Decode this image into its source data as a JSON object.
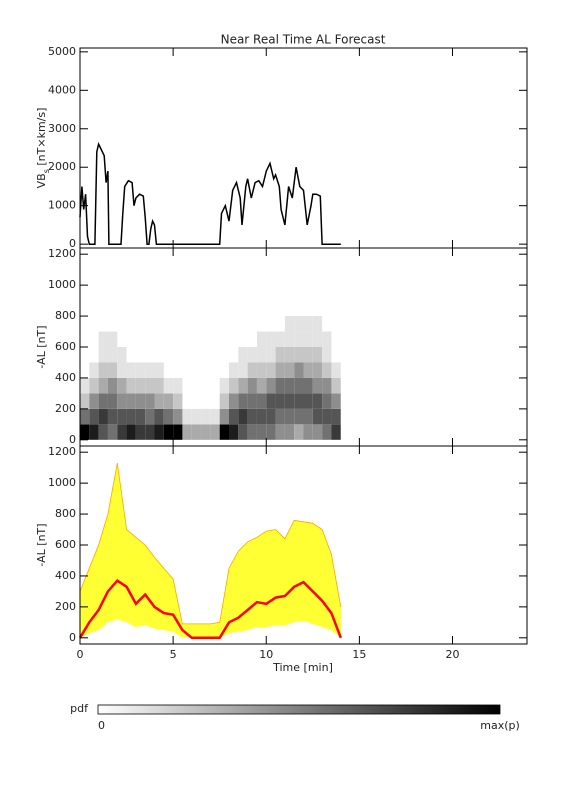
{
  "chart_data": [
    {
      "type": "line",
      "title": "Near Real Time AL Forecast",
      "ylabel": "VB",
      "ylabel_sub": "s",
      "ylabel_unit": " [nT×km/s]",
      "x": [
        0,
        0.1,
        0.2,
        0.3,
        0.4,
        0.5,
        0.8,
        0.9,
        1.0,
        1.1,
        1.3,
        1.4,
        1.5,
        1.55,
        2.2,
        2.3,
        2.4,
        2.6,
        2.8,
        2.9,
        3.0,
        3.2,
        3.4,
        3.5,
        3.6,
        3.7,
        3.8,
        3.9,
        4.0,
        4.1,
        7.5,
        7.6,
        7.8,
        8.0,
        8.2,
        8.4,
        8.6,
        8.7,
        8.9,
        9.0,
        9.2,
        9.4,
        9.6,
        9.8,
        10.0,
        10.2,
        10.4,
        10.5,
        10.7,
        10.8,
        11.0,
        11.2,
        11.4,
        11.6,
        11.8,
        12.0,
        12.2,
        12.4,
        12.5,
        12.7,
        12.9,
        13.0,
        14.0
      ],
      "values": [
        700,
        1500,
        900,
        1300,
        200,
        0,
        0,
        2400,
        2600,
        2500,
        2300,
        1600,
        1900,
        0,
        0,
        800,
        1500,
        1650,
        1600,
        1000,
        1200,
        1300,
        1250,
        700,
        0,
        0,
        400,
        600,
        500,
        0,
        0,
        800,
        1000,
        600,
        1400,
        1600,
        1200,
        500,
        1500,
        1700,
        1200,
        1600,
        1650,
        1500,
        1900,
        2100,
        1700,
        1800,
        1500,
        900,
        500,
        1500,
        1200,
        2000,
        1500,
        1400,
        500,
        1000,
        1300,
        1300,
        1250,
        0,
        0
      ],
      "color": "#000000",
      "xlim": [
        0,
        24
      ],
      "ylim": [
        -100,
        5100
      ],
      "yticks": [
        0,
        1000,
        2000,
        3000,
        4000,
        5000
      ]
    },
    {
      "type": "heatmap",
      "ylabel": "-AL [nT]",
      "x": [
        0,
        0.5,
        1,
        1.5,
        2,
        2.5,
        3,
        3.5,
        4,
        4.5,
        5,
        5.5,
        6,
        6.5,
        7,
        7.5,
        8,
        8.5,
        9,
        9.5,
        10,
        10.5,
        11,
        11.5,
        12,
        12.5,
        13,
        13.5,
        14
      ],
      "y": [
        0,
        100,
        200,
        300,
        400,
        500,
        600,
        700,
        800
      ],
      "values": [
        [
          9,
          5,
          2,
          1,
          0,
          0,
          0,
          0
        ],
        [
          8,
          6,
          4,
          2,
          1,
          0,
          0,
          0
        ],
        [
          6,
          7,
          5,
          3,
          2,
          1,
          1,
          0
        ],
        [
          5,
          6,
          5,
          4,
          2,
          1,
          1,
          0
        ],
        [
          7,
          6,
          4,
          3,
          1,
          1,
          0,
          0
        ],
        [
          8,
          6,
          4,
          2,
          1,
          0,
          0,
          0
        ],
        [
          7,
          6,
          4,
          2,
          1,
          0,
          0,
          0
        ],
        [
          7,
          5,
          4,
          2,
          1,
          0,
          0,
          0
        ],
        [
          8,
          6,
          3,
          2,
          1,
          0,
          0,
          0
        ],
        [
          9,
          5,
          3,
          1,
          0,
          0,
          0,
          0
        ],
        [
          9,
          4,
          2,
          1,
          0,
          0,
          0,
          0
        ],
        [
          3,
          1,
          0,
          0,
          0,
          0,
          0,
          0
        ],
        [
          3,
          1,
          0,
          0,
          0,
          0,
          0,
          0
        ],
        [
          3,
          1,
          0,
          0,
          0,
          0,
          0,
          0
        ],
        [
          3,
          1,
          0,
          0,
          0,
          0,
          0,
          0
        ],
        [
          9,
          4,
          2,
          1,
          0,
          0,
          0,
          0
        ],
        [
          8,
          6,
          4,
          2,
          1,
          0,
          0,
          0
        ],
        [
          6,
          7,
          5,
          3,
          1,
          1,
          0,
          0
        ],
        [
          5,
          6,
          5,
          4,
          2,
          1,
          0,
          0
        ],
        [
          5,
          6,
          5,
          3,
          2,
          1,
          1,
          0
        ],
        [
          5,
          6,
          6,
          4,
          2,
          1,
          1,
          0
        ],
        [
          4,
          5,
          6,
          5,
          3,
          2,
          1,
          0
        ],
        [
          4,
          5,
          6,
          5,
          3,
          2,
          1,
          1
        ],
        [
          3,
          5,
          6,
          5,
          4,
          2,
          1,
          1
        ],
        [
          4,
          5,
          6,
          5,
          3,
          2,
          1,
          1
        ],
        [
          4,
          6,
          6,
          4,
          3,
          2,
          1,
          1
        ],
        [
          5,
          6,
          5,
          4,
          2,
          1,
          1,
          0
        ],
        [
          7,
          6,
          4,
          2,
          1,
          0,
          0,
          0
        ]
      ],
      "xlim": [
        0,
        24
      ],
      "ylim": [
        -40,
        1240
      ],
      "yticks": [
        0,
        200,
        400,
        600,
        800,
        1000,
        1200
      ],
      "colorbar": {
        "label": "pdf",
        "clim": [
          0,
          9
        ],
        "ticks": [
          {
            "value": 0,
            "label": "0"
          },
          {
            "value": 9,
            "label": "max(p)"
          }
        ]
      }
    },
    {
      "type": "band",
      "ylabel": "-AL [nT]",
      "xlabel": "Time [min]",
      "x": [
        0,
        0.5,
        1,
        1.5,
        2,
        2.5,
        3,
        3.5,
        4,
        4.5,
        5,
        5.5,
        6,
        6.5,
        7,
        7.5,
        8,
        8.5,
        9,
        9.5,
        10,
        10.5,
        11,
        11.5,
        12,
        12.5,
        13,
        13.5,
        14
      ],
      "lower": {
        "color": "#ffff33",
        "values": [
          0,
          30,
          50,
          100,
          120,
          100,
          70,
          80,
          60,
          50,
          40,
          0,
          0,
          0,
          0,
          0,
          30,
          40,
          50,
          70,
          70,
          80,
          80,
          100,
          110,
          90,
          70,
          50,
          0
        ]
      },
      "upper": {
        "color": "#ffa500",
        "values": [
          300,
          450,
          600,
          800,
          1130,
          700,
          650,
          600,
          520,
          450,
          380,
          90,
          90,
          90,
          90,
          100,
          450,
          560,
          620,
          650,
          690,
          700,
          640,
          760,
          750,
          740,
          700,
          540,
          200
        ]
      },
      "median": {
        "color": "#ff0000",
        "values": [
          0,
          100,
          180,
          300,
          370,
          330,
          220,
          280,
          200,
          160,
          150,
          50,
          0,
          0,
          0,
          0,
          100,
          130,
          180,
          230,
          220,
          260,
          270,
          330,
          360,
          300,
          240,
          160,
          0
        ]
      },
      "xlim": [
        0,
        24
      ],
      "ylim": [
        -40,
        1240
      ],
      "yticks": [
        0,
        200,
        400,
        600,
        800,
        1000,
        1200
      ],
      "xticks": [
        0,
        5,
        10,
        15,
        20
      ]
    }
  ]
}
